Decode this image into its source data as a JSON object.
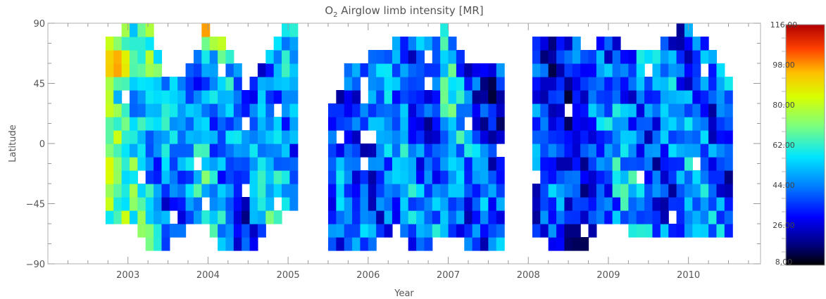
{
  "chart_data": {
    "type": "heatmap",
    "title_prefix": "O",
    "title_sub": "2",
    "title_suffix": " Airglow limb intensity [MR]",
    "xlabel": "Year",
    "ylabel": "Latitude",
    "xlim": [
      2002.0,
      2010.9
    ],
    "ylim": [
      -90,
      90
    ],
    "x_ticks": [
      2003,
      2004,
      2005,
      2006,
      2007,
      2008,
      2009,
      2010
    ],
    "x_tick_labels": [
      "2003",
      "2004",
      "2005",
      "2006",
      "2007",
      "2008",
      "2009",
      "2010"
    ],
    "y_ticks": [
      90,
      45,
      0,
      -45,
      -90
    ],
    "y_tick_labels": [
      "90",
      "45",
      "0",
      "−45",
      "−90"
    ],
    "lat_range": [
      -80,
      90
    ],
    "grid": false,
    "data_gaps": [
      [
        2005.05,
        2005.5
      ],
      [
        2007.7,
        2008.05
      ]
    ],
    "colorbar": {
      "min": 8.0,
      "max": 116.0,
      "tick_values": [
        116.0,
        98.0,
        80.0,
        62.0,
        44.0,
        26.0,
        8.0
      ],
      "tick_labels": [
        "116.00",
        "98.00",
        "80.00",
        "62.00",
        "44.00",
        "26.00",
        "8.00"
      ],
      "colormap": "rainbow-black-to-red"
    },
    "segments": [
      {
        "x_start": 2002.72,
        "x_end": 2005.05,
        "columns": [
          {
            "x": 2002.8,
            "lat_min": -55,
            "lat_max": 80,
            "mean": 68
          },
          {
            "x": 2003.0,
            "lat_min": -55,
            "lat_max": 90,
            "mean": 62
          },
          {
            "x": 2003.25,
            "lat_min": -80,
            "lat_max": 90,
            "mean": 58
          },
          {
            "x": 2003.5,
            "lat_min": -80,
            "lat_max": 40,
            "mean": 44
          },
          {
            "x": 2003.75,
            "lat_min": -60,
            "lat_max": 60,
            "mean": 40
          },
          {
            "x": 2004.0,
            "lat_min": -65,
            "lat_max": 90,
            "mean": 56
          },
          {
            "x": 2004.25,
            "lat_min": -80,
            "lat_max": 70,
            "mean": 46
          },
          {
            "x": 2004.5,
            "lat_min": -80,
            "lat_max": 40,
            "mean": 38
          },
          {
            "x": 2004.75,
            "lat_min": -65,
            "lat_max": 70,
            "mean": 50
          },
          {
            "x": 2005.0,
            "lat_min": -45,
            "lat_max": 90,
            "mean": 48
          }
        ]
      },
      {
        "x_start": 2005.5,
        "x_end": 2007.7,
        "columns": [
          {
            "x": 2005.55,
            "lat_min": -75,
            "lat_max": 30,
            "mean": 36
          },
          {
            "x": 2005.75,
            "lat_min": -80,
            "lat_max": 60,
            "mean": 42
          },
          {
            "x": 2006.0,
            "lat_min": -80,
            "lat_max": 65,
            "mean": 40
          },
          {
            "x": 2006.25,
            "lat_min": -70,
            "lat_max": 75,
            "mean": 44
          },
          {
            "x": 2006.5,
            "lat_min": -75,
            "lat_max": 80,
            "mean": 42
          },
          {
            "x": 2006.75,
            "lat_min": -80,
            "lat_max": 75,
            "mean": 38
          },
          {
            "x": 2007.0,
            "lat_min": -65,
            "lat_max": 90,
            "mean": 52
          },
          {
            "x": 2007.25,
            "lat_min": -80,
            "lat_max": 60,
            "mean": 40
          },
          {
            "x": 2007.5,
            "lat_min": -80,
            "lat_max": 60,
            "mean": 34
          }
        ]
      },
      {
        "x_start": 2008.05,
        "x_end": 2010.55,
        "columns": [
          {
            "x": 2008.1,
            "lat_min": -70,
            "lat_max": 80,
            "mean": 34
          },
          {
            "x": 2008.3,
            "lat_min": -80,
            "lat_max": 75,
            "mean": 36
          },
          {
            "x": 2008.5,
            "lat_min": -80,
            "lat_max": 80,
            "mean": 30
          },
          {
            "x": 2008.7,
            "lat_min": -75,
            "lat_max": 70,
            "mean": 34
          },
          {
            "x": 2008.9,
            "lat_min": -60,
            "lat_max": 80,
            "mean": 40
          },
          {
            "x": 2009.1,
            "lat_min": -55,
            "lat_max": 75,
            "mean": 44
          },
          {
            "x": 2009.3,
            "lat_min": -70,
            "lat_max": 65,
            "mean": 46
          },
          {
            "x": 2009.5,
            "lat_min": -70,
            "lat_max": 70,
            "mean": 40
          },
          {
            "x": 2009.7,
            "lat_min": -70,
            "lat_max": 80,
            "mean": 42
          },
          {
            "x": 2009.9,
            "lat_min": -70,
            "lat_max": 90,
            "mean": 38
          },
          {
            "x": 2010.1,
            "lat_min": -70,
            "lat_max": 80,
            "mean": 46
          },
          {
            "x": 2010.3,
            "lat_min": -70,
            "lat_max": 70,
            "mean": 42
          },
          {
            "x": 2010.5,
            "lat_min": -70,
            "lat_max": 50,
            "mean": 40
          }
        ]
      }
    ],
    "notable_features": [
      {
        "kind": "maximum",
        "x": 2002.85,
        "lat": 60,
        "value": 110
      },
      {
        "kind": "maximum",
        "x": 2004.05,
        "lat": 88,
        "value": 112
      },
      {
        "kind": "minimum",
        "x": 2008.6,
        "lat": -72,
        "value": 8
      }
    ]
  }
}
